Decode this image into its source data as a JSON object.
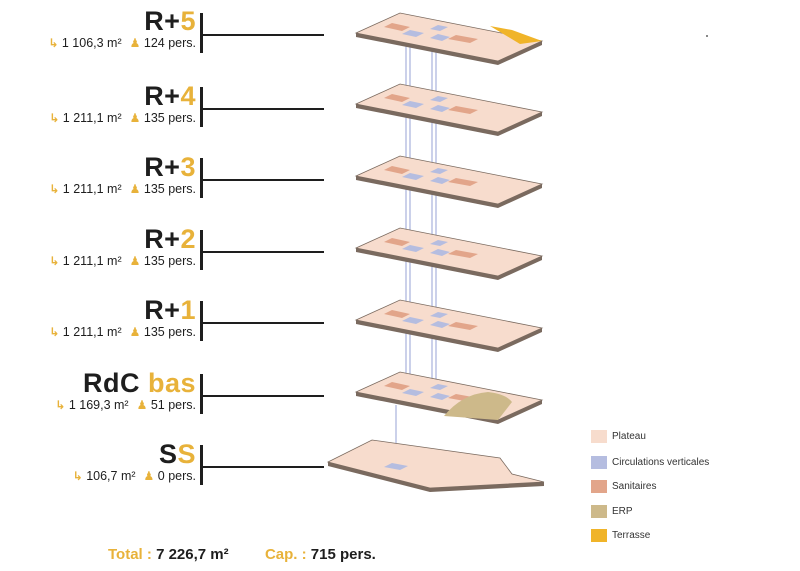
{
  "floors": [
    {
      "prefix": "R+",
      "suffix": "5",
      "area": "1 106,3 m²",
      "people": "124 pers."
    },
    {
      "prefix": "R+",
      "suffix": "4",
      "area": "1 211,1 m²",
      "people": "135 pers."
    },
    {
      "prefix": "R+",
      "suffix": "3",
      "area": "1 211,1 m²",
      "people": "135 pers."
    },
    {
      "prefix": "R+",
      "suffix": "2",
      "area": "1 211,1 m²",
      "people": "135 pers."
    },
    {
      "prefix": "R+",
      "suffix": "1",
      "area": "1 211,1 m²",
      "people": "135 pers."
    },
    {
      "prefix": "RdC ",
      "suffix": "bas",
      "area": "1 169,3 m²",
      "people": "51 pers."
    },
    {
      "prefix": "S",
      "suffix": "S",
      "area": "106,7 m²",
      "people": "0 pers."
    }
  ],
  "icons": {
    "area": "area-arrow-icon",
    "people": "person-icon"
  },
  "legend": [
    {
      "label": "Plateau",
      "color": "#f7dccd"
    },
    {
      "label": "Circulations verticales",
      "color": "#b5bde0"
    },
    {
      "label": "Sanitaires",
      "color": "#e2a58a"
    },
    {
      "label": "ERP",
      "color": "#cdb98a"
    },
    {
      "label": "Terrasse",
      "color": "#f0b429"
    }
  ],
  "totals": {
    "total_label": "Total :",
    "total_value": "7 226,7 m²",
    "cap_label": "Cap. :",
    "cap_value": "715 pers."
  },
  "colors": {
    "accent": "#e8b23a",
    "plateau": "#f7dccd",
    "edge": "#7a6a5f",
    "circulation": "#b5bde0",
    "sanitaires": "#e2a58a",
    "erp": "#cdb98a",
    "terrasse": "#f0b429"
  }
}
